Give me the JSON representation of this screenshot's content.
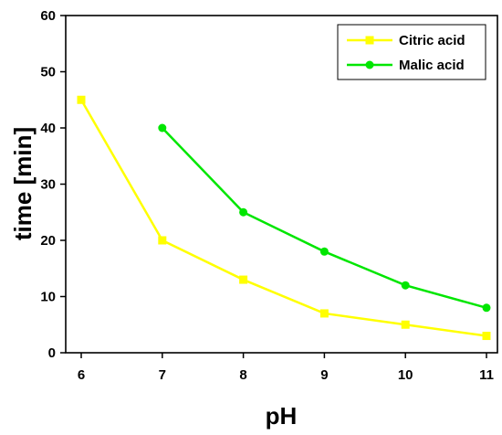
{
  "chart_data": {
    "type": "line",
    "xlabel": "pH",
    "ylabel": "time [min]",
    "xlim": [
      6,
      11
    ],
    "ylim": [
      0,
      60
    ],
    "x_ticks": [
      "6",
      "7",
      "8",
      "9",
      "10",
      "11"
    ],
    "y_ticks": [
      "0",
      "10",
      "20",
      "30",
      "40",
      "50",
      "60"
    ],
    "legend_position": "top-right",
    "grid": false,
    "series": [
      {
        "name": "Citric acid",
        "color": "#ffff00",
        "marker": "square",
        "x": [
          6,
          7,
          8,
          9,
          10,
          11
        ],
        "y": [
          45,
          20,
          13,
          7,
          5,
          3
        ]
      },
      {
        "name": "Malic acid",
        "color": "#00e600",
        "marker": "circle",
        "x": [
          7,
          8,
          9,
          10,
          11
        ],
        "y": [
          40,
          25,
          18,
          12,
          8
        ]
      }
    ]
  }
}
